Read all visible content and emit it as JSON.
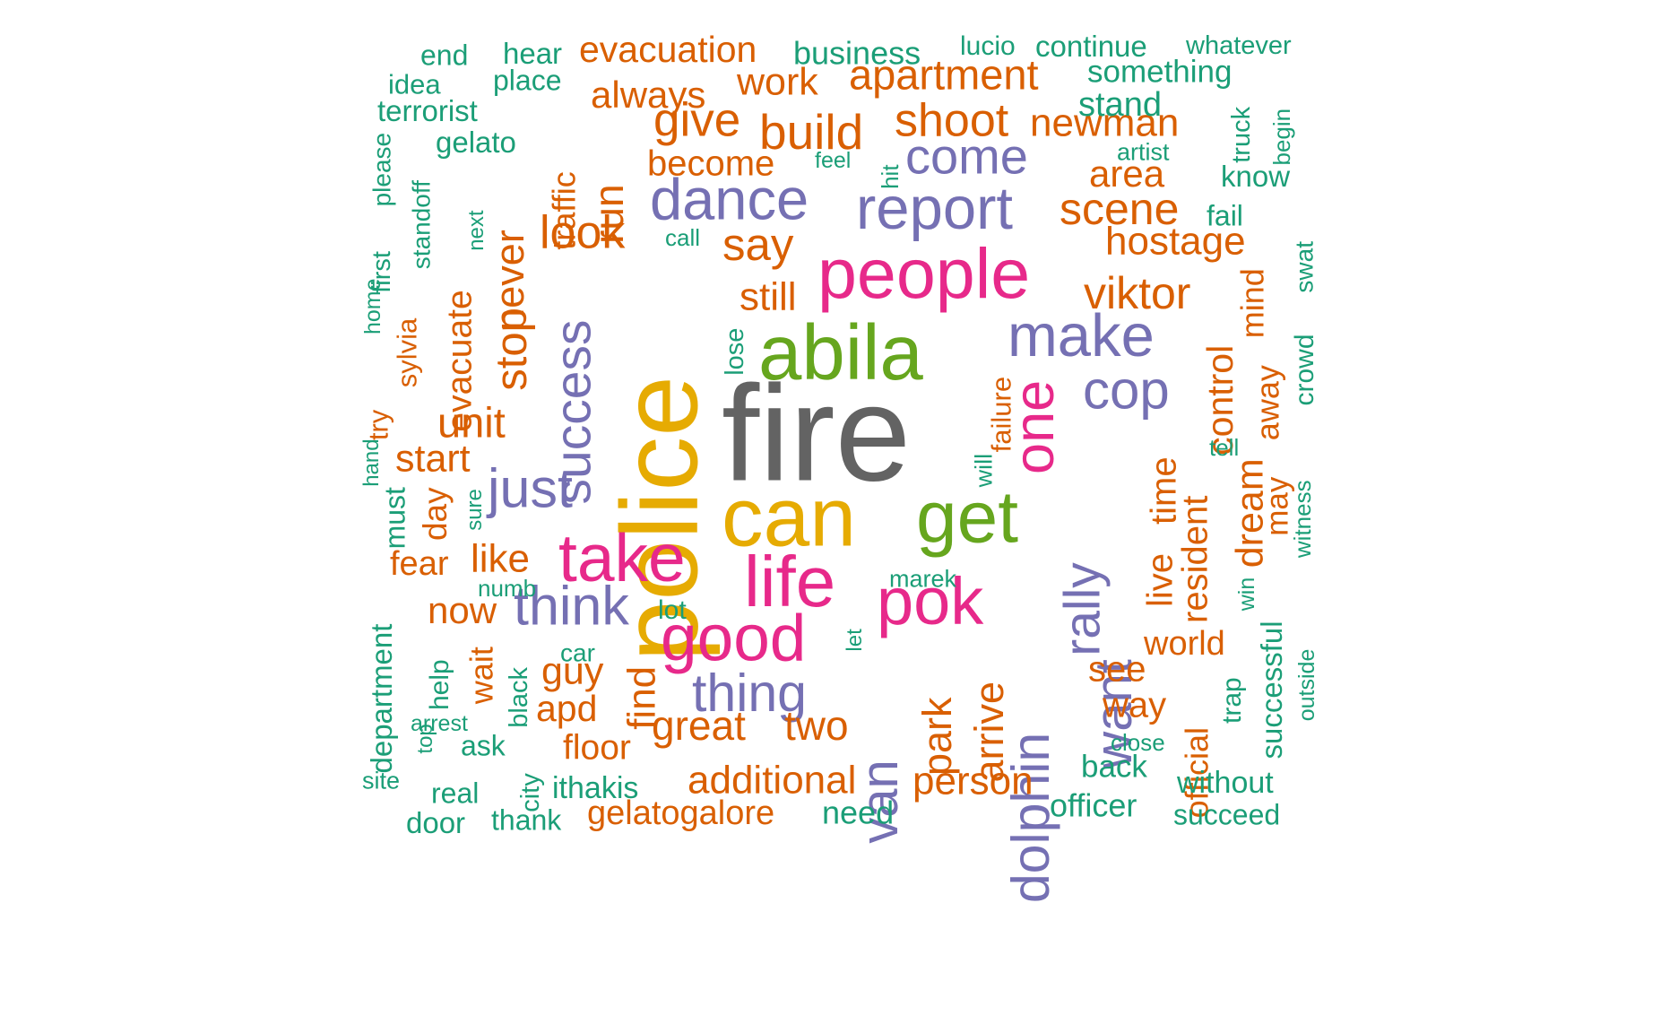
{
  "colors": {
    "grey": "#636363",
    "gold": "#E6AB02",
    "pink": "#E7298A",
    "green": "#66A61E",
    "purple": "#7570B3",
    "orange": "#D95F02",
    "teal": "#1B9E77"
  },
  "words": [
    {
      "text": "fire",
      "color": "grey"
    },
    {
      "text": "police",
      "color": "gold"
    },
    {
      "text": "can",
      "color": "gold"
    },
    {
      "text": "abila",
      "color": "green"
    },
    {
      "text": "people",
      "color": "pink"
    },
    {
      "text": "get",
      "color": "green"
    },
    {
      "text": "life",
      "color": "pink"
    },
    {
      "text": "take",
      "color": "pink"
    },
    {
      "text": "pok",
      "color": "pink"
    },
    {
      "text": "good",
      "color": "pink"
    },
    {
      "text": "one",
      "color": "pink"
    },
    {
      "text": "make",
      "color": "purple"
    },
    {
      "text": "report",
      "color": "purple"
    },
    {
      "text": "dance",
      "color": "purple"
    },
    {
      "text": "success",
      "color": "purple"
    },
    {
      "text": "cop",
      "color": "purple"
    },
    {
      "text": "just",
      "color": "purple"
    },
    {
      "text": "think",
      "color": "purple"
    },
    {
      "text": "thing",
      "color": "purple"
    },
    {
      "text": "come",
      "color": "purple"
    },
    {
      "text": "rally",
      "color": "purple"
    },
    {
      "text": "want",
      "color": "purple"
    },
    {
      "text": "dolphin",
      "color": "purple"
    },
    {
      "text": "van",
      "color": "purple"
    },
    {
      "text": "say",
      "color": "orange"
    },
    {
      "text": "build",
      "color": "orange"
    },
    {
      "text": "shoot",
      "color": "orange"
    },
    {
      "text": "give",
      "color": "orange"
    },
    {
      "text": "look",
      "color": "orange"
    },
    {
      "text": "viktor",
      "color": "orange"
    },
    {
      "text": "scene",
      "color": "orange"
    },
    {
      "text": "hostage",
      "color": "orange"
    },
    {
      "text": "area",
      "color": "orange"
    },
    {
      "text": "newman",
      "color": "orange"
    },
    {
      "text": "apartment",
      "color": "orange"
    },
    {
      "text": "evacuation",
      "color": "orange"
    },
    {
      "text": "work",
      "color": "orange"
    },
    {
      "text": "always",
      "color": "orange"
    },
    {
      "text": "become",
      "color": "orange"
    },
    {
      "text": "still",
      "color": "orange"
    },
    {
      "text": "unit",
      "color": "orange"
    },
    {
      "text": "start",
      "color": "orange"
    },
    {
      "text": "like",
      "color": "orange"
    },
    {
      "text": "now",
      "color": "orange"
    },
    {
      "text": "guy",
      "color": "orange"
    },
    {
      "text": "apd",
      "color": "orange"
    },
    {
      "text": "floor",
      "color": "orange"
    },
    {
      "text": "great",
      "color": "orange"
    },
    {
      "text": "two",
      "color": "orange"
    },
    {
      "text": "additional",
      "color": "orange"
    },
    {
      "text": "person",
      "color": "orange"
    },
    {
      "text": "gelatogalore",
      "color": "orange"
    },
    {
      "text": "see",
      "color": "orange"
    },
    {
      "text": "way",
      "color": "orange"
    },
    {
      "text": "world",
      "color": "orange"
    },
    {
      "text": "fear",
      "color": "orange"
    },
    {
      "text": "run",
      "color": "orange"
    },
    {
      "text": "traffic",
      "color": "orange"
    },
    {
      "text": "never",
      "color": "orange"
    },
    {
      "text": "stop",
      "color": "orange"
    },
    {
      "text": "evacuate",
      "color": "orange"
    },
    {
      "text": "sylvia",
      "color": "orange"
    },
    {
      "text": "try",
      "color": "orange"
    },
    {
      "text": "day",
      "color": "orange"
    },
    {
      "text": "find",
      "color": "orange"
    },
    {
      "text": "wait",
      "color": "orange"
    },
    {
      "text": "park",
      "color": "orange"
    },
    {
      "text": "arrive",
      "color": "orange"
    },
    {
      "text": "failure",
      "color": "orange"
    },
    {
      "text": "live",
      "color": "orange"
    },
    {
      "text": "time",
      "color": "orange"
    },
    {
      "text": "resident",
      "color": "orange"
    },
    {
      "text": "control",
      "color": "orange"
    },
    {
      "text": "dream",
      "color": "orange"
    },
    {
      "text": "mind",
      "color": "orange"
    },
    {
      "text": "away",
      "color": "orange"
    },
    {
      "text": "may",
      "color": "orange"
    },
    {
      "text": "official",
      "color": "orange"
    },
    {
      "text": "end",
      "color": "teal"
    },
    {
      "text": "hear",
      "color": "teal"
    },
    {
      "text": "business",
      "color": "teal"
    },
    {
      "text": "lucio",
      "color": "teal"
    },
    {
      "text": "continue",
      "color": "teal"
    },
    {
      "text": "whatever",
      "color": "teal"
    },
    {
      "text": "idea",
      "color": "teal"
    },
    {
      "text": "place",
      "color": "teal"
    },
    {
      "text": "something",
      "color": "teal"
    },
    {
      "text": "terrorist",
      "color": "teal"
    },
    {
      "text": "stand",
      "color": "teal"
    },
    {
      "text": "gelato",
      "color": "teal"
    },
    {
      "text": "artist",
      "color": "teal"
    },
    {
      "text": "feel",
      "color": "teal"
    },
    {
      "text": "know",
      "color": "teal"
    },
    {
      "text": "fail",
      "color": "teal"
    },
    {
      "text": "call",
      "color": "teal"
    },
    {
      "text": "numb",
      "color": "teal"
    },
    {
      "text": "lot",
      "color": "teal"
    },
    {
      "text": "car",
      "color": "teal"
    },
    {
      "text": "marek",
      "color": "teal"
    },
    {
      "text": "arrest",
      "color": "teal"
    },
    {
      "text": "ask",
      "color": "teal"
    },
    {
      "text": "close",
      "color": "teal"
    },
    {
      "text": "back",
      "color": "teal"
    },
    {
      "text": "without",
      "color": "teal"
    },
    {
      "text": "site",
      "color": "teal"
    },
    {
      "text": "real",
      "color": "teal"
    },
    {
      "text": "ithakis",
      "color": "teal"
    },
    {
      "text": "officer",
      "color": "teal"
    },
    {
      "text": "door",
      "color": "teal"
    },
    {
      "text": "thank",
      "color": "teal"
    },
    {
      "text": "need",
      "color": "teal"
    },
    {
      "text": "succeed",
      "color": "teal"
    },
    {
      "text": "please",
      "color": "teal"
    },
    {
      "text": "first",
      "color": "teal"
    },
    {
      "text": "home",
      "color": "teal"
    },
    {
      "text": "hand",
      "color": "teal"
    },
    {
      "text": "must",
      "color": "teal"
    },
    {
      "text": "standoff",
      "color": "teal"
    },
    {
      "text": "next",
      "color": "teal"
    },
    {
      "text": "sure",
      "color": "teal"
    },
    {
      "text": "department",
      "color": "teal"
    },
    {
      "text": "help",
      "color": "teal"
    },
    {
      "text": "top",
      "color": "teal"
    },
    {
      "text": "black",
      "color": "teal"
    },
    {
      "text": "city",
      "color": "teal"
    },
    {
      "text": "hit",
      "color": "teal"
    },
    {
      "text": "lose",
      "color": "teal"
    },
    {
      "text": "let",
      "color": "teal"
    },
    {
      "text": "will",
      "color": "teal"
    },
    {
      "text": "truck",
      "color": "teal"
    },
    {
      "text": "begin",
      "color": "teal"
    },
    {
      "text": "swat",
      "color": "teal"
    },
    {
      "text": "crowd",
      "color": "teal"
    },
    {
      "text": "witness",
      "color": "teal"
    },
    {
      "text": "tell",
      "color": "teal"
    },
    {
      "text": "win",
      "color": "teal"
    },
    {
      "text": "successful",
      "color": "teal"
    },
    {
      "text": "outside",
      "color": "teal"
    },
    {
      "text": "trap",
      "color": "teal"
    }
  ]
}
